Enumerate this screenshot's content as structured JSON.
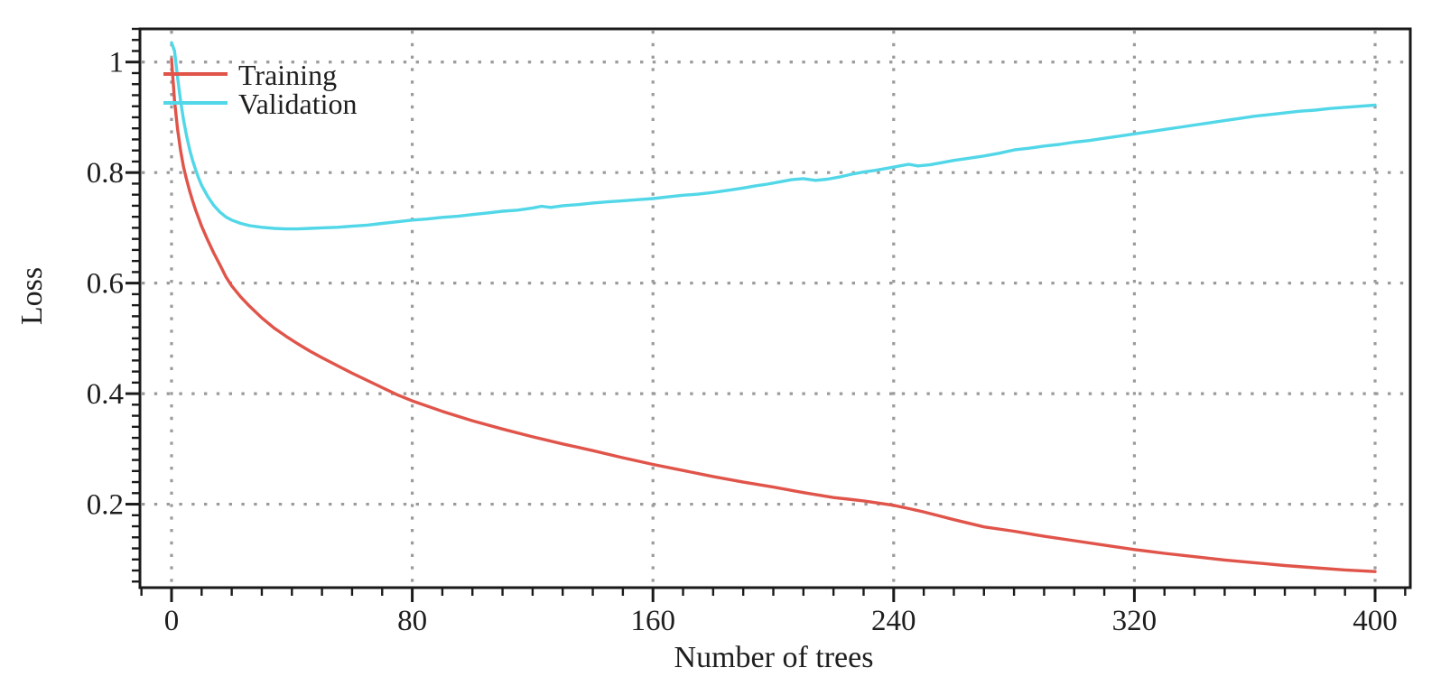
{
  "figure": {
    "background": "#ffffff",
    "frame_color": "#1a1a1a",
    "grid_color": "#9b9b9b",
    "tick_color": "#1a1a1a",
    "text_color": "#1e1e1e"
  },
  "chart_data": {
    "type": "line",
    "title": "",
    "xlabel": "Number of trees",
    "ylabel": "Loss",
    "x_ticks": [
      0,
      80,
      160,
      240,
      320,
      400
    ],
    "y_ticks": [
      0.2,
      0.4,
      0.6,
      0.8,
      1
    ],
    "x_minor_step": 10,
    "y_minor_step": 0.02,
    "xlim": [
      -10.5,
      411.7
    ],
    "ylim": [
      0.049,
      1.06
    ],
    "grid": "dotted",
    "legend": {
      "position": "top-left",
      "entries": [
        "Training",
        "Validation"
      ]
    },
    "series": [
      {
        "name": "Training",
        "color": "#e0544a",
        "points": [
          [
            0,
            1.005
          ],
          [
            1,
            0.93
          ],
          [
            2,
            0.878
          ],
          [
            3,
            0.84
          ],
          [
            4,
            0.81
          ],
          [
            5,
            0.787
          ],
          [
            6,
            0.767
          ],
          [
            7,
            0.749
          ],
          [
            8,
            0.732
          ],
          [
            10,
            0.703
          ],
          [
            12,
            0.678
          ],
          [
            14,
            0.655
          ],
          [
            16,
            0.634
          ],
          [
            18,
            0.612
          ],
          [
            20,
            0.595
          ],
          [
            23,
            0.575
          ],
          [
            26,
            0.558
          ],
          [
            30,
            0.537
          ],
          [
            34,
            0.519
          ],
          [
            38,
            0.504
          ],
          [
            42,
            0.49
          ],
          [
            46,
            0.477
          ],
          [
            50,
            0.465
          ],
          [
            55,
            0.451
          ],
          [
            60,
            0.437
          ],
          [
            65,
            0.424
          ],
          [
            70,
            0.411
          ],
          [
            75,
            0.398
          ],
          [
            80,
            0.387
          ],
          [
            90,
            0.368
          ],
          [
            100,
            0.351
          ],
          [
            110,
            0.336
          ],
          [
            120,
            0.322
          ],
          [
            130,
            0.309
          ],
          [
            140,
            0.297
          ],
          [
            150,
            0.284
          ],
          [
            160,
            0.272
          ],
          [
            170,
            0.261
          ],
          [
            180,
            0.25
          ],
          [
            190,
            0.24
          ],
          [
            200,
            0.231
          ],
          [
            210,
            0.221
          ],
          [
            220,
            0.212
          ],
          [
            225,
            0.209
          ],
          [
            230,
            0.206
          ],
          [
            240,
            0.198
          ],
          [
            245,
            0.192
          ],
          [
            250,
            0.186
          ],
          [
            255,
            0.179
          ],
          [
            260,
            0.172
          ],
          [
            270,
            0.159
          ],
          [
            280,
            0.151
          ],
          [
            290,
            0.142
          ],
          [
            300,
            0.134
          ],
          [
            310,
            0.126
          ],
          [
            320,
            0.118
          ],
          [
            330,
            0.111
          ],
          [
            340,
            0.105
          ],
          [
            350,
            0.099
          ],
          [
            360,
            0.094
          ],
          [
            370,
            0.089
          ],
          [
            380,
            0.085
          ],
          [
            390,
            0.081
          ],
          [
            400,
            0.078
          ]
        ]
      },
      {
        "name": "Validation",
        "color": "#52d7e8",
        "points": [
          [
            0,
            1.035
          ],
          [
            1,
            1.02
          ],
          [
            2,
            0.972
          ],
          [
            3,
            0.93
          ],
          [
            4,
            0.895
          ],
          [
            5,
            0.866
          ],
          [
            6,
            0.842
          ],
          [
            7,
            0.822
          ],
          [
            8,
            0.805
          ],
          [
            9,
            0.79
          ],
          [
            10,
            0.777
          ],
          [
            12,
            0.757
          ],
          [
            14,
            0.741
          ],
          [
            16,
            0.729
          ],
          [
            18,
            0.72
          ],
          [
            20,
            0.714
          ],
          [
            23,
            0.708
          ],
          [
            26,
            0.704
          ],
          [
            30,
            0.701
          ],
          [
            34,
            0.699
          ],
          [
            38,
            0.698
          ],
          [
            42,
            0.698
          ],
          [
            46,
            0.699
          ],
          [
            50,
            0.7
          ],
          [
            55,
            0.701
          ],
          [
            60,
            0.703
          ],
          [
            65,
            0.705
          ],
          [
            70,
            0.708
          ],
          [
            75,
            0.711
          ],
          [
            80,
            0.714
          ],
          [
            85,
            0.716
          ],
          [
            90,
            0.719
          ],
          [
            95,
            0.721
          ],
          [
            100,
            0.724
          ],
          [
            105,
            0.727
          ],
          [
            110,
            0.73
          ],
          [
            115,
            0.732
          ],
          [
            120,
            0.736
          ],
          [
            123,
            0.739
          ],
          [
            126,
            0.737
          ],
          [
            130,
            0.74
          ],
          [
            135,
            0.742
          ],
          [
            140,
            0.745
          ],
          [
            145,
            0.747
          ],
          [
            150,
            0.749
          ],
          [
            155,
            0.751
          ],
          [
            160,
            0.753
          ],
          [
            165,
            0.756
          ],
          [
            170,
            0.759
          ],
          [
            175,
            0.761
          ],
          [
            180,
            0.764
          ],
          [
            185,
            0.768
          ],
          [
            190,
            0.772
          ],
          [
            194,
            0.776
          ],
          [
            198,
            0.779
          ],
          [
            202,
            0.783
          ],
          [
            206,
            0.787
          ],
          [
            210,
            0.789
          ],
          [
            214,
            0.786
          ],
          [
            218,
            0.788
          ],
          [
            222,
            0.792
          ],
          [
            226,
            0.797
          ],
          [
            230,
            0.801
          ],
          [
            234,
            0.804
          ],
          [
            238,
            0.808
          ],
          [
            242,
            0.812
          ],
          [
            245,
            0.815
          ],
          [
            248,
            0.812
          ],
          [
            252,
            0.814
          ],
          [
            256,
            0.818
          ],
          [
            260,
            0.822
          ],
          [
            265,
            0.826
          ],
          [
            270,
            0.83
          ],
          [
            275,
            0.835
          ],
          [
            280,
            0.841
          ],
          [
            285,
            0.844
          ],
          [
            290,
            0.848
          ],
          [
            295,
            0.851
          ],
          [
            300,
            0.855
          ],
          [
            305,
            0.858
          ],
          [
            310,
            0.862
          ],
          [
            315,
            0.866
          ],
          [
            320,
            0.87
          ],
          [
            325,
            0.874
          ],
          [
            330,
            0.878
          ],
          [
            335,
            0.882
          ],
          [
            340,
            0.886
          ],
          [
            345,
            0.89
          ],
          [
            350,
            0.894
          ],
          [
            355,
            0.898
          ],
          [
            360,
            0.902
          ],
          [
            365,
            0.905
          ],
          [
            370,
            0.908
          ],
          [
            375,
            0.911
          ],
          [
            380,
            0.913
          ],
          [
            385,
            0.916
          ],
          [
            390,
            0.918
          ],
          [
            395,
            0.92
          ],
          [
            400,
            0.922
          ]
        ]
      }
    ]
  }
}
